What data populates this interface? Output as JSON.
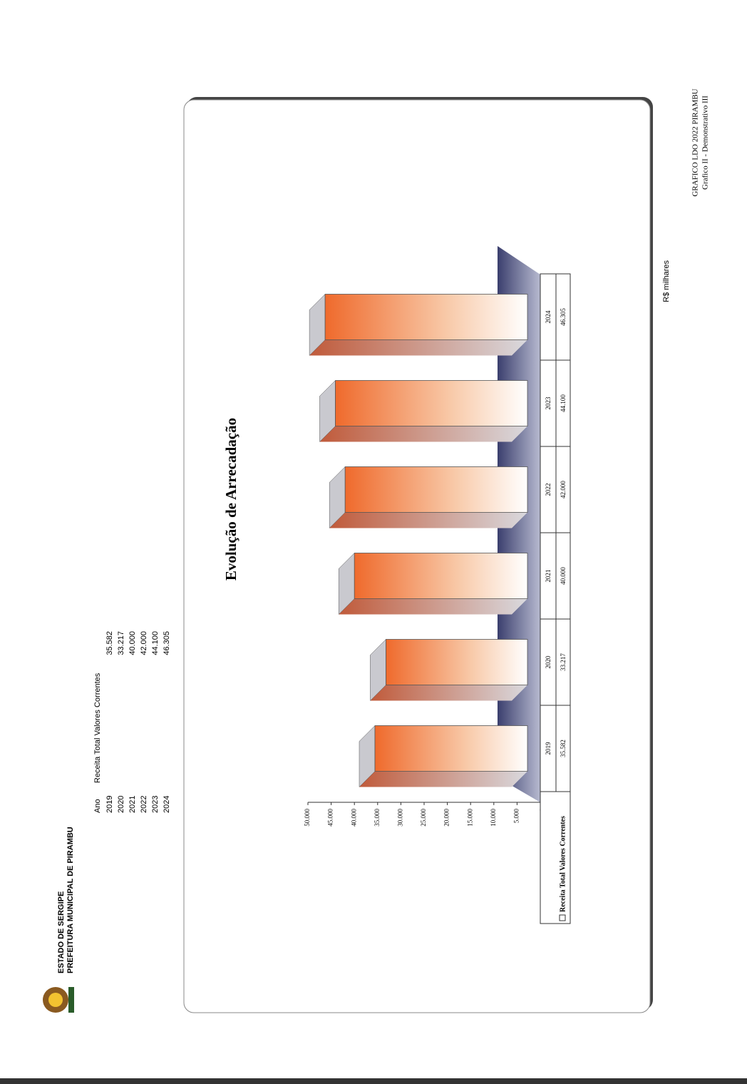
{
  "header": {
    "state": "ESTADO DE SERGIPE",
    "city": "PREFEITURA MUNICIPAL DE PIRAMBU"
  },
  "table_year_header": "Ano",
  "unit": "R$ milhares",
  "footer": [
    "GRAFICO LDO 2022 PIRAMBU",
    "Grafico II - Demonstrativo III"
  ],
  "chart_data": {
    "type": "bar",
    "title": "Evolução de Arrecadação",
    "categories": [
      "2019",
      "2020",
      "2021",
      "2022",
      "2023",
      "2024"
    ],
    "series": [
      {
        "name": "Receita Total Valores Correntes",
        "color": "#e2622f",
        "values": [
          35582,
          33217,
          40000,
          42000,
          44100,
          46305
        ],
        "value_labels": [
          "35.582",
          "33.217",
          "40.000",
          "42.000",
          "44.100",
          "46.305"
        ]
      }
    ],
    "ylim": [
      0,
      50000
    ],
    "yticks": [
      {
        "value": 0,
        "label": "-"
      },
      {
        "value": 5000,
        "label": "5.000"
      },
      {
        "value": 10000,
        "label": "10.000"
      },
      {
        "value": 15000,
        "label": "15.000"
      },
      {
        "value": 20000,
        "label": "20.000"
      },
      {
        "value": 25000,
        "label": "25.000"
      },
      {
        "value": 30000,
        "label": "30.000"
      },
      {
        "value": 35000,
        "label": "35.000"
      },
      {
        "value": 40000,
        "label": "40.000"
      },
      {
        "value": 45000,
        "label": "45.000"
      },
      {
        "value": 50000,
        "label": "50.000"
      }
    ]
  }
}
